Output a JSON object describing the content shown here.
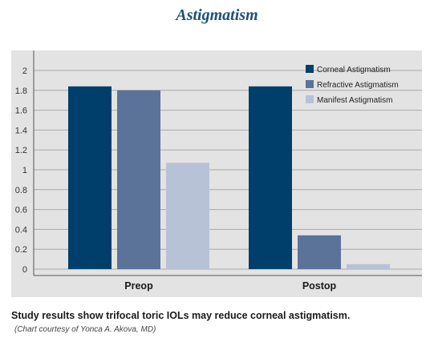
{
  "header": {
    "title": "Astigmatism"
  },
  "chart_data": {
    "type": "bar",
    "categories": [
      "Preop",
      "Postop"
    ],
    "series": [
      {
        "name": "Corneal Astigmatism",
        "values": [
          1.84,
          1.84
        ],
        "color": "#003f6b"
      },
      {
        "name": "Refractive Astigmatism",
        "values": [
          1.8,
          0.34
        ],
        "color": "#5b7399"
      },
      {
        "name": "Manifest Astigmatism",
        "values": [
          1.07,
          0.05
        ],
        "color": "#b8c2d6"
      }
    ],
    "yticks": [
      "0",
      "0.2",
      "0.4",
      "0.6",
      "0.8",
      "1",
      "1.2",
      "1.4",
      "1.6",
      "1.8",
      "2"
    ],
    "ylim": [
      0,
      2
    ],
    "grid": true,
    "legend_position": "top-right",
    "plot_background": "#e3e3e3",
    "frame_color": "#555555"
  },
  "footer": {
    "caption": "Study results show trifocal toric IOLs may reduce corneal astigmatism.",
    "credit": "(Chart courtesy of Yonca A. Akova, MD)"
  }
}
